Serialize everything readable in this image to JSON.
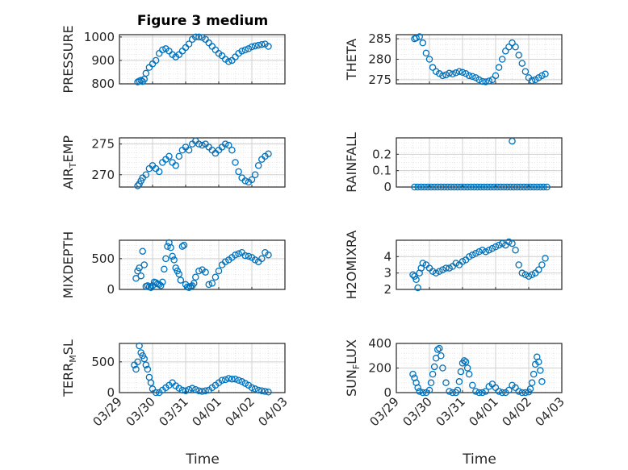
{
  "figure": {
    "title": "Figure 3 medium",
    "xlabel": "Time",
    "x_ticks": [
      "03/29",
      "03/30",
      "03/31",
      "04/01",
      "04/02",
      "04/03"
    ]
  },
  "colors": {
    "marker": "#0072BD",
    "grid": "#d0d0d0",
    "axis": "#262626"
  },
  "chart_data": [
    {
      "type": "scatter",
      "ylabel": "PRESSURE",
      "xlim": [
        0,
        5
      ],
      "ylim": [
        800,
        1010
      ],
      "yticks": [
        800,
        900,
        1000
      ],
      "grid": true,
      "series": [
        {
          "x": [
            0.55,
            0.6,
            0.65,
            0.7,
            0.75,
            0.8,
            0.9,
            1.0,
            1.1,
            1.2,
            1.3,
            1.4,
            1.5,
            1.6,
            1.7,
            1.8,
            1.9,
            2.0,
            2.1,
            2.2,
            2.3,
            2.4,
            2.5,
            2.6,
            2.7,
            2.8,
            2.9,
            3.0,
            3.1,
            3.2,
            3.3,
            3.4,
            3.5,
            3.6,
            3.7,
            3.8,
            3.9,
            4.0,
            4.1,
            4.2,
            4.3,
            4.4,
            4.5
          ],
          "y": [
            808,
            812,
            815,
            810,
            820,
            845,
            870,
            885,
            900,
            930,
            945,
            950,
            940,
            925,
            915,
            925,
            940,
            955,
            970,
            990,
            1000,
            1000,
            998,
            990,
            975,
            960,
            945,
            930,
            920,
            905,
            895,
            900,
            915,
            930,
            940,
            945,
            950,
            958,
            962,
            965,
            968,
            970,
            960
          ]
        }
      ]
    },
    {
      "type": "scatter",
      "ylabel": "THETA",
      "xlim": [
        0,
        5
      ],
      "ylim": [
        274,
        286
      ],
      "yticks": [
        275,
        280,
        285
      ],
      "grid": true,
      "series": [
        {
          "x": [
            0.55,
            0.6,
            0.7,
            0.8,
            0.9,
            1.0,
            1.1,
            1.2,
            1.3,
            1.4,
            1.5,
            1.6,
            1.7,
            1.8,
            1.9,
            2.0,
            2.1,
            2.2,
            2.3,
            2.4,
            2.5,
            2.6,
            2.7,
            2.8,
            2.9,
            3.0,
            3.1,
            3.2,
            3.3,
            3.4,
            3.5,
            3.6,
            3.7,
            3.8,
            3.9,
            4.0,
            4.1,
            4.2,
            4.3,
            4.4,
            4.5
          ],
          "y": [
            285,
            285.2,
            285.5,
            284,
            281.5,
            280,
            278,
            277,
            276.5,
            276,
            276.2,
            276.6,
            276.4,
            276.7,
            277,
            276.8,
            276.5,
            276,
            275.8,
            275.5,
            275,
            274.6,
            274.5,
            274.7,
            275,
            276,
            278,
            280,
            282,
            283,
            284,
            283,
            281,
            279,
            277,
            275.5,
            274.8,
            275,
            275.5,
            276,
            276.4
          ]
        }
      ]
    },
    {
      "type": "scatter",
      "ylabel": "AIR_TEMP",
      "xlim": [
        0,
        5
      ],
      "ylim": [
        268,
        276
      ],
      "yticks": [
        270,
        275
      ],
      "grid": true,
      "series": [
        {
          "x": [
            0.55,
            0.6,
            0.65,
            0.7,
            0.8,
            0.9,
            1.0,
            1.1,
            1.2,
            1.3,
            1.4,
            1.5,
            1.6,
            1.7,
            1.8,
            1.9,
            2.0,
            2.1,
            2.2,
            2.3,
            2.4,
            2.5,
            2.6,
            2.7,
            2.8,
            2.9,
            3.0,
            3.1,
            3.2,
            3.3,
            3.4,
            3.5,
            3.6,
            3.7,
            3.8,
            3.9,
            4.0,
            4.1,
            4.2,
            4.3,
            4.4,
            4.5
          ],
          "y": [
            268.2,
            268.5,
            269,
            269.5,
            270,
            271,
            271.5,
            271,
            270.5,
            272,
            272.5,
            273,
            272,
            271.5,
            273,
            274,
            274.5,
            274,
            275,
            275.5,
            275,
            274.8,
            275,
            274.5,
            274,
            273.5,
            274,
            274.5,
            275,
            274.8,
            274,
            272,
            270.5,
            269.5,
            269,
            268.8,
            269.2,
            270,
            271.5,
            272.5,
            273,
            273.4
          ]
        }
      ]
    },
    {
      "type": "scatter",
      "ylabel": "RAINFALL",
      "xlim": [
        0,
        5
      ],
      "ylim": [
        0,
        0.3
      ],
      "yticks": [
        0,
        0.1,
        0.2
      ],
      "grid": true,
      "series": [
        {
          "x": [
            0.55,
            0.65,
            0.75,
            0.85,
            0.95,
            1.05,
            1.15,
            1.25,
            1.35,
            1.45,
            1.55,
            1.65,
            1.75,
            1.85,
            1.95,
            2.05,
            2.15,
            2.25,
            2.35,
            2.45,
            2.55,
            2.65,
            2.75,
            2.85,
            2.95,
            3.05,
            3.15,
            3.25,
            3.35,
            3.45,
            3.55,
            3.65,
            3.75,
            3.85,
            3.95,
            4.05,
            4.15,
            4.25,
            4.35,
            4.45,
            4.55,
            3.5
          ],
          "y": [
            0,
            0,
            0,
            0,
            0,
            0,
            0,
            0,
            0,
            0,
            0,
            0,
            0,
            0,
            0,
            0,
            0,
            0,
            0,
            0,
            0,
            0,
            0,
            0,
            0,
            0,
            0,
            0,
            0,
            0,
            0,
            0,
            0,
            0,
            0,
            0,
            0,
            0,
            0,
            0,
            0,
            0.28
          ]
        }
      ]
    },
    {
      "type": "scatter",
      "ylabel": "MIXDEPTH",
      "xlim": [
        0,
        5
      ],
      "ylim": [
        0,
        800
      ],
      "yticks": [
        0,
        500
      ],
      "grid": true,
      "series": [
        {
          "x": [
            0.5,
            0.55,
            0.6,
            0.65,
            0.7,
            0.75,
            0.8,
            0.85,
            0.9,
            0.95,
            1.0,
            1.05,
            1.1,
            1.15,
            1.2,
            1.25,
            1.3,
            1.35,
            1.4,
            1.45,
            1.5,
            1.55,
            1.6,
            1.65,
            1.7,
            1.75,
            1.8,
            1.85,
            1.9,
            1.95,
            2.0,
            2.05,
            2.1,
            2.15,
            2.2,
            2.25,
            2.3,
            2.4,
            2.5,
            2.6,
            2.7,
            2.8,
            2.9,
            3.0,
            3.1,
            3.2,
            3.3,
            3.4,
            3.5,
            3.6,
            3.7,
            3.8,
            3.9,
            4.0,
            4.1,
            4.2,
            4.3,
            4.4,
            4.5
          ],
          "y": [
            180,
            300,
            350,
            220,
            620,
            400,
            50,
            60,
            40,
            30,
            60,
            120,
            110,
            90,
            80,
            60,
            120,
            330,
            500,
            700,
            760,
            680,
            540,
            480,
            350,
            300,
            250,
            150,
            700,
            720,
            80,
            40,
            30,
            50,
            60,
            100,
            200,
            300,
            320,
            280,
            80,
            100,
            200,
            300,
            400,
            450,
            480,
            520,
            560,
            580,
            600,
            550,
            540,
            520,
            480,
            450,
            500,
            600,
            560
          ]
        }
      ]
    },
    {
      "type": "scatter",
      "ylabel": "H2OMIXRA",
      "xlim": [
        0,
        5
      ],
      "ylim": [
        2,
        5
      ],
      "yticks": [
        2,
        3,
        4
      ],
      "grid": true,
      "series": [
        {
          "x": [
            0.5,
            0.55,
            0.6,
            0.65,
            0.7,
            0.75,
            0.8,
            0.9,
            1.0,
            1.1,
            1.2,
            1.3,
            1.4,
            1.5,
            1.6,
            1.7,
            1.8,
            1.9,
            2.0,
            2.1,
            2.2,
            2.3,
            2.4,
            2.5,
            2.6,
            2.7,
            2.8,
            2.9,
            3.0,
            3.1,
            3.2,
            3.3,
            3.4,
            3.5,
            3.6,
            3.7,
            3.8,
            3.9,
            4.0,
            4.1,
            4.2,
            4.3,
            4.4,
            4.5
          ],
          "y": [
            2.9,
            2.8,
            2.6,
            2.1,
            3.0,
            3.3,
            3.6,
            3.5,
            3.3,
            3.1,
            3.0,
            3.1,
            3.2,
            3.3,
            3.3,
            3.4,
            3.6,
            3.5,
            3.7,
            3.8,
            4.0,
            4.1,
            4.2,
            4.3,
            4.4,
            4.3,
            4.4,
            4.5,
            4.6,
            4.7,
            4.8,
            4.7,
            4.9,
            4.8,
            4.4,
            3.5,
            3.0,
            2.9,
            2.8,
            2.9,
            3.0,
            3.2,
            3.5,
            3.9
          ]
        }
      ]
    },
    {
      "type": "scatter",
      "ylabel": "TERR_MSL",
      "xlim": [
        0,
        5
      ],
      "ylim": [
        0,
        800
      ],
      "yticks": [
        0,
        500
      ],
      "grid": true,
      "series": [
        {
          "x": [
            0.45,
            0.5,
            0.55,
            0.6,
            0.65,
            0.7,
            0.75,
            0.8,
            0.85,
            0.9,
            0.95,
            1.0,
            1.1,
            1.2,
            1.3,
            1.4,
            1.5,
            1.6,
            1.7,
            1.8,
            1.9,
            2.0,
            2.1,
            2.2,
            2.3,
            2.4,
            2.5,
            2.6,
            2.7,
            2.8,
            2.9,
            3.0,
            3.1,
            3.2,
            3.3,
            3.4,
            3.5,
            3.6,
            3.7,
            3.8,
            3.9,
            4.0,
            4.1,
            4.2,
            4.3,
            4.4,
            4.5
          ],
          "y": [
            450,
            380,
            500,
            760,
            650,
            600,
            550,
            450,
            380,
            250,
            160,
            60,
            0,
            0,
            40,
            80,
            120,
            160,
            110,
            70,
            40,
            30,
            50,
            70,
            50,
            30,
            20,
            30,
            40,
            80,
            120,
            160,
            200,
            210,
            230,
            220,
            220,
            200,
            180,
            150,
            120,
            80,
            60,
            40,
            30,
            20,
            10
          ]
        }
      ]
    },
    {
      "type": "scatter",
      "ylabel": "SUN_FLUX",
      "xlim": [
        0,
        5
      ],
      "ylim": [
        0,
        400
      ],
      "yticks": [
        0,
        200,
        400
      ],
      "grid": true,
      "series": [
        {
          "x": [
            0.5,
            0.55,
            0.6,
            0.65,
            0.7,
            0.8,
            0.9,
            1.0,
            1.05,
            1.1,
            1.15,
            1.2,
            1.25,
            1.3,
            1.35,
            1.4,
            1.5,
            1.6,
            1.7,
            1.8,
            1.85,
            1.9,
            1.95,
            2.0,
            2.05,
            2.1,
            2.15,
            2.2,
            2.3,
            2.4,
            2.5,
            2.6,
            2.7,
            2.8,
            2.9,
            3.0,
            3.1,
            3.2,
            3.3,
            3.4,
            3.5,
            3.6,
            3.7,
            3.8,
            3.9,
            4.0,
            4.05,
            4.1,
            4.15,
            4.2,
            4.25,
            4.3,
            4.35,
            4.4
          ],
          "y": [
            150,
            120,
            80,
            40,
            10,
            0,
            0,
            20,
            80,
            150,
            210,
            280,
            350,
            360,
            300,
            200,
            80,
            10,
            0,
            0,
            20,
            90,
            170,
            240,
            260,
            250,
            200,
            150,
            60,
            10,
            0,
            0,
            10,
            50,
            70,
            40,
            10,
            0,
            0,
            20,
            60,
            40,
            10,
            0,
            0,
            5,
            30,
            80,
            150,
            230,
            290,
            250,
            180,
            90
          ]
        }
      ]
    }
  ]
}
